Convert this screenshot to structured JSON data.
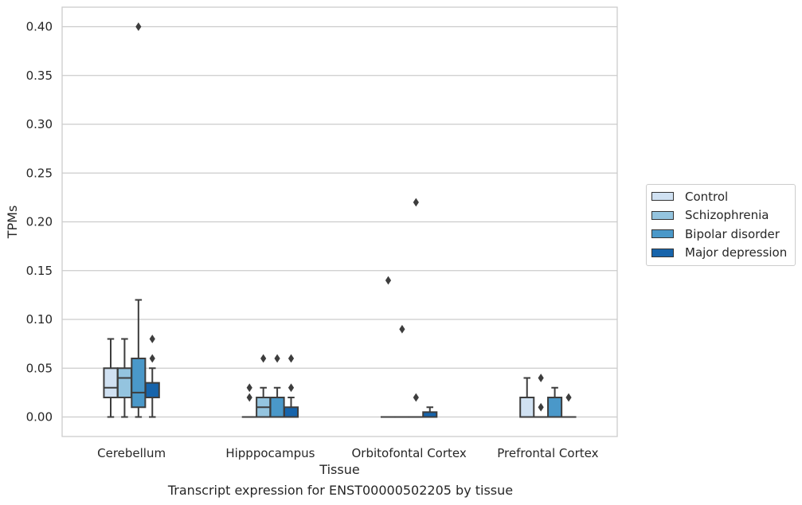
{
  "chart_data": {
    "type": "boxplot",
    "title": "Transcript expression for ENST00000502205 by tissue",
    "xlabel": "Tissue",
    "ylabel": "TPMs",
    "ylim": [
      -0.02,
      0.42
    ],
    "yticks": [
      0.0,
      0.05,
      0.1,
      0.15,
      0.2,
      0.25,
      0.3,
      0.35,
      0.4
    ],
    "ytick_labels": [
      "0.00",
      "0.05",
      "0.10",
      "0.15",
      "0.20",
      "0.25",
      "0.30",
      "0.35",
      "0.40"
    ],
    "grid": true,
    "legend_position": "right",
    "categories": [
      "Cerebellum",
      "Hipppocampus",
      "Orbitofontal Cortex",
      "Prefrontal Cortex"
    ],
    "series": [
      {
        "name": "Control",
        "color": "#d0e1f2",
        "boxes": [
          {
            "whislo": 0.0,
            "q1": 0.02,
            "med": 0.03,
            "q3": 0.05,
            "whishi": 0.08,
            "fliers": []
          },
          {
            "whislo": 0.0,
            "q1": 0.0,
            "med": 0.0,
            "q3": 0.0,
            "whishi": 0.0,
            "fliers": [
              0.02,
              0.03
            ]
          },
          {
            "whislo": 0.0,
            "q1": 0.0,
            "med": 0.0,
            "q3": 0.0,
            "whishi": 0.0,
            "fliers": [
              0.14
            ]
          },
          {
            "whislo": 0.0,
            "q1": 0.0,
            "med": 0.0,
            "q3": 0.02,
            "whishi": 0.04,
            "fliers": []
          }
        ]
      },
      {
        "name": "Schizophrenia",
        "color": "#94c4df",
        "boxes": [
          {
            "whislo": 0.0,
            "q1": 0.02,
            "med": 0.04,
            "q3": 0.05,
            "whishi": 0.08,
            "fliers": []
          },
          {
            "whislo": 0.0,
            "q1": 0.0,
            "med": 0.01,
            "q3": 0.02,
            "whishi": 0.03,
            "fliers": [
              0.06
            ]
          },
          {
            "whislo": 0.0,
            "q1": 0.0,
            "med": 0.0,
            "q3": 0.0,
            "whishi": 0.0,
            "fliers": [
              0.09
            ]
          },
          {
            "whislo": 0.0,
            "q1": 0.0,
            "med": 0.0,
            "q3": 0.0,
            "whishi": 0.0,
            "fliers": [
              0.01,
              0.04
            ]
          }
        ]
      },
      {
        "name": "Bipolar disorder",
        "color": "#4a98c9",
        "boxes": [
          {
            "whislo": 0.0,
            "q1": 0.01,
            "med": 0.025,
            "q3": 0.06,
            "whishi": 0.12,
            "fliers": [
              0.4
            ]
          },
          {
            "whislo": 0.0,
            "q1": 0.0,
            "med": 0.0,
            "q3": 0.02,
            "whishi": 0.03,
            "fliers": [
              0.06
            ]
          },
          {
            "whislo": 0.0,
            "q1": 0.0,
            "med": 0.0,
            "q3": 0.0,
            "whishi": 0.0,
            "fliers": [
              0.02,
              0.22
            ]
          },
          {
            "whislo": 0.0,
            "q1": 0.0,
            "med": 0.0,
            "q3": 0.02,
            "whishi": 0.03,
            "fliers": []
          }
        ]
      },
      {
        "name": "Major depression",
        "color": "#1764ab",
        "boxes": [
          {
            "whislo": 0.0,
            "q1": 0.02,
            "med": 0.02,
            "q3": 0.035,
            "whishi": 0.05,
            "fliers": [
              0.06,
              0.08
            ]
          },
          {
            "whislo": 0.0,
            "q1": 0.0,
            "med": 0.0,
            "q3": 0.01,
            "whishi": 0.02,
            "fliers": [
              0.03,
              0.06
            ]
          },
          {
            "whislo": 0.0,
            "q1": 0.0,
            "med": 0.0,
            "q3": 0.005,
            "whishi": 0.01,
            "fliers": []
          },
          {
            "whislo": 0.0,
            "q1": 0.0,
            "med": 0.0,
            "q3": 0.0,
            "whishi": 0.0,
            "fliers": [
              0.02
            ]
          }
        ]
      }
    ]
  }
}
